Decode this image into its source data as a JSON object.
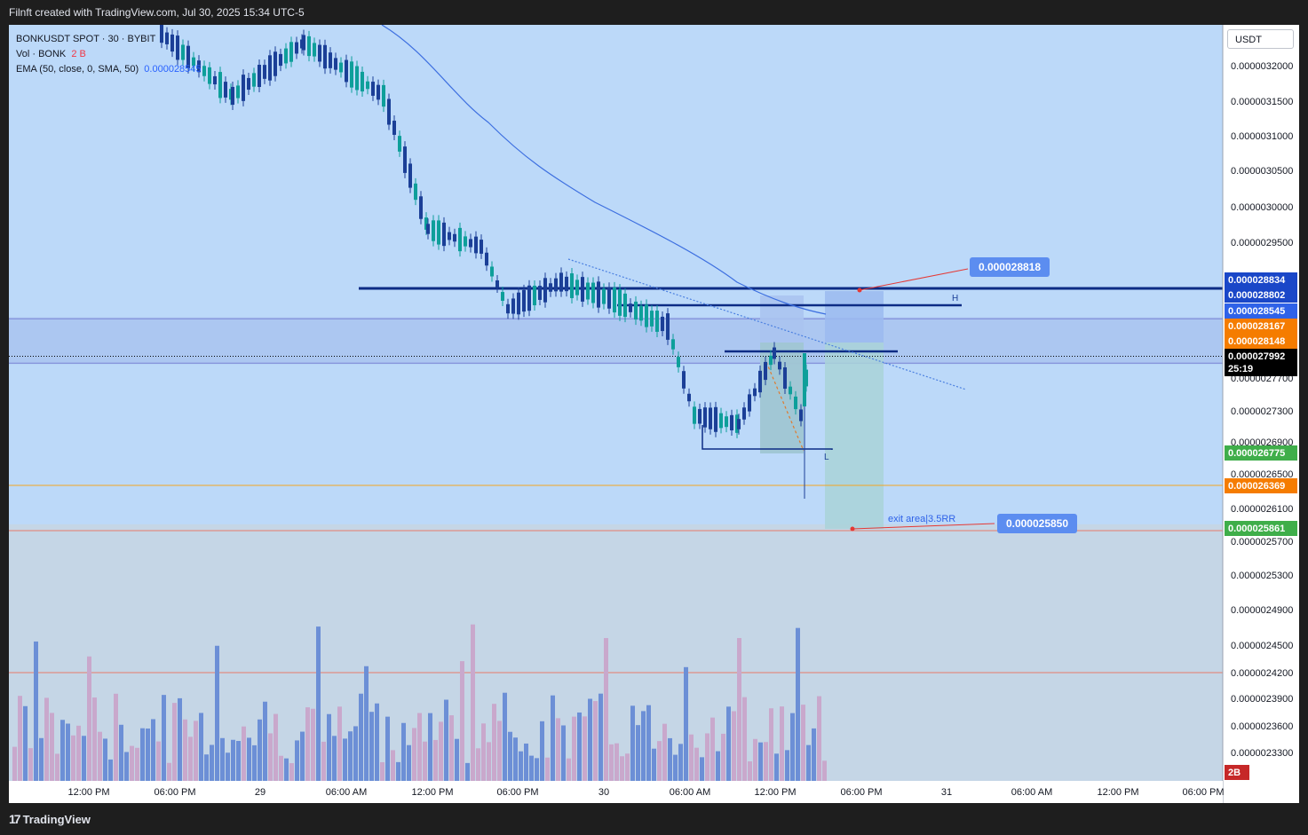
{
  "header": {
    "title": "Filnft created with TradingView.com, Jul 30, 2025 15:34 UTC-5"
  },
  "legend": {
    "symbol": "BONKUSDT SPOT · 30 · BYBIT",
    "vol_label": "Vol · BONK",
    "vol_value": "2 B",
    "ema_label": "EMA (50, close, 0, SMA, 50)",
    "ema_value": "0.000028545"
  },
  "currency": "USDT",
  "brand": "TradingView",
  "colors": {
    "background": "#bcd9f9",
    "up": "#0e9f9a",
    "down": "#1b3f97",
    "ema": "#3d6fe0",
    "level": "#0d2c85",
    "current_price": "#000000"
  },
  "chart_data": {
    "type": "candlestick",
    "price_axis": [
      "0.0000032000",
      "0.0000031500",
      "0.0000031000",
      "0.0000030500",
      "0.0000030000",
      "0.0000029500",
      "0.0000027700",
      "0.0000027300",
      "0.0000026900",
      "0.0000026500",
      "0.0000026100",
      "0.0000025700",
      "0.0000025300",
      "0.0000024900",
      "0.0000024500",
      "0.0000024200",
      "0.0000023900",
      "0.0000023600",
      "0.0000023300"
    ],
    "time_axis": [
      "12:00 PM",
      "06:00 PM",
      "29",
      "06:00 AM",
      "12:00 PM",
      "06:00 PM",
      "30",
      "06:00 AM",
      "12:00 PM",
      "06:00 PM",
      "31",
      "06:00 AM",
      "12:00 PM",
      "06:00 PM"
    ],
    "price_badges": [
      {
        "label": "0.000028834",
        "kind": "level"
      },
      {
        "label": "0.000028802",
        "kind": "level"
      },
      {
        "label": "0.000028545",
        "kind": "ema"
      },
      {
        "label": "0.000028167",
        "kind": "orange"
      },
      {
        "label": "0.000028148",
        "kind": "orange"
      },
      {
        "label": "0.000027992",
        "kind": "current"
      },
      {
        "label": "25:19",
        "kind": "countdown"
      },
      {
        "label": "0.000026775",
        "kind": "green"
      },
      {
        "label": "0.000026369",
        "kind": "orange"
      },
      {
        "label": "0.000025861",
        "kind": "green"
      },
      {
        "label": "2B",
        "kind": "volume"
      }
    ],
    "annotations": {
      "target_top": "0.000028818",
      "target_bottom": "0.000025850",
      "exit_text": "exit area|3.5RR",
      "high_mark": "H",
      "low_mark": "L"
    }
  }
}
